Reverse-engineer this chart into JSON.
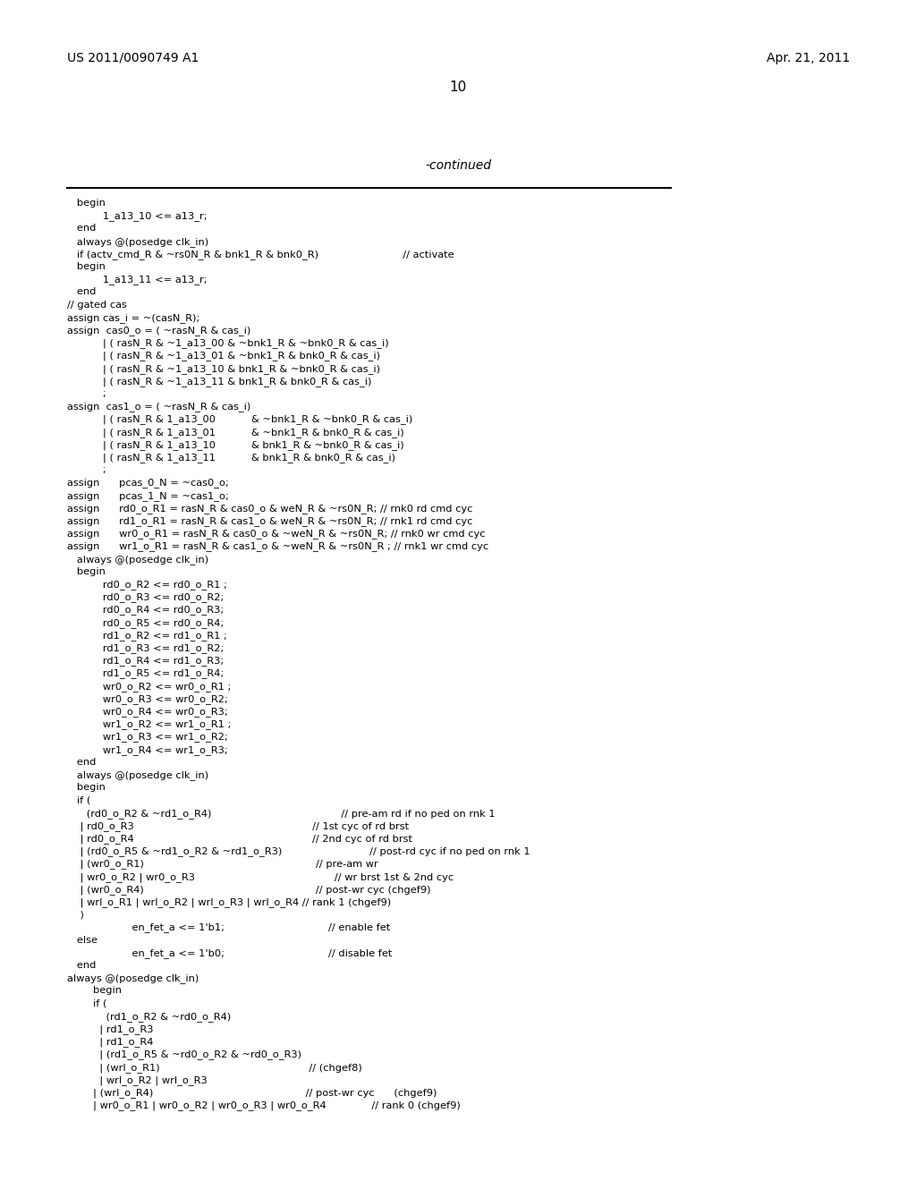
{
  "header_left": "US 2011/0090749 A1",
  "header_right": "Apr. 21, 2011",
  "page_number": "10",
  "continued_text": "-continued",
  "background_color": "#ffffff",
  "text_color": "#000000",
  "code_lines": [
    "   begin",
    "           1_a13_10 <= a13_r;",
    "   end",
    "   always @(posedge clk_in)",
    "   if (actv_cmd_R & ~rs0N_R & bnk1_R & bnk0_R)                          // activate",
    "   begin",
    "           1_a13_11 <= a13_r;",
    "   end",
    "// gated cas",
    "assign cas_i = ~(casN_R);",
    "assign  cas0_o = ( ~rasN_R & cas_i)",
    "           | ( rasN_R & ~1_a13_00 & ~bnk1_R & ~bnk0_R & cas_i)",
    "           | ( rasN_R & ~1_a13_01 & ~bnk1_R & bnk0_R & cas_i)",
    "           | ( rasN_R & ~1_a13_10 & bnk1_R & ~bnk0_R & cas_i)",
    "           | ( rasN_R & ~1_a13_11 & bnk1_R & bnk0_R & cas_i)",
    "           ;",
    "assign  cas1_o = ( ~rasN_R & cas_i)",
    "           | ( rasN_R & 1_a13_00           & ~bnk1_R & ~bnk0_R & cas_i)",
    "           | ( rasN_R & 1_a13_01           & ~bnk1_R & bnk0_R & cas_i)",
    "           | ( rasN_R & 1_a13_10           & bnk1_R & ~bnk0_R & cas_i)",
    "           | ( rasN_R & 1_a13_11           & bnk1_R & bnk0_R & cas_i)",
    "           ;",
    "assign      pcas_0_N = ~cas0_o;",
    "assign      pcas_1_N = ~cas1_o;",
    "assign      rd0_o_R1 = rasN_R & cas0_o & weN_R & ~rs0N_R; // rnk0 rd cmd cyc",
    "assign      rd1_o_R1 = rasN_R & cas1_o & weN_R & ~rs0N_R; // rnk1 rd cmd cyc",
    "assign      wr0_o_R1 = rasN_R & cas0_o & ~weN_R & ~rs0N_R; // rnk0 wr cmd cyc",
    "assign      wr1_o_R1 = rasN_R & cas1_o & ~weN_R & ~rs0N_R ; // rnk1 wr cmd cyc",
    "   always @(posedge clk_in)",
    "   begin",
    "           rd0_o_R2 <= rd0_o_R1 ;",
    "           rd0_o_R3 <= rd0_o_R2;",
    "           rd0_o_R4 <= rd0_o_R3;",
    "           rd0_o_R5 <= rd0_o_R4;",
    "           rd1_o_R2 <= rd1_o_R1 ;",
    "           rd1_o_R3 <= rd1_o_R2;",
    "           rd1_o_R4 <= rd1_o_R3;",
    "           rd1_o_R5 <= rd1_o_R4;",
    "           wr0_o_R2 <= wr0_o_R1 ;",
    "           wr0_o_R3 <= wr0_o_R2;",
    "           wr0_o_R4 <= wr0_o_R3;",
    "           wr1_o_R2 <= wr1_o_R1 ;",
    "           wr1_o_R3 <= wr1_o_R2;",
    "           wr1_o_R4 <= wr1_o_R3;",
    "   end",
    "   always @(posedge clk_in)",
    "   begin",
    "   if (",
    "      (rd0_o_R2 & ~rd1_o_R4)                                        // pre-am rd if no ped on rnk 1",
    "    | rd0_o_R3                                                       // 1st cyc of rd brst",
    "    | rd0_o_R4                                                       // 2nd cyc of rd brst",
    "    | (rd0_o_R5 & ~rd1_o_R2 & ~rd1_o_R3)                           // post-rd cyc if no ped on rnk 1",
    "    | (wr0_o_R1)                                                     // pre-am wr",
    "    | wr0_o_R2 | wr0_o_R3                                           // wr brst 1st & 2nd cyc",
    "    | (wr0_o_R4)                                                     // post-wr cyc (chgef9)",
    "    | wrl_o_R1 | wrl_o_R2 | wrl_o_R3 | wrl_o_R4 // rank 1 (chgef9)",
    "    )",
    "                    en_fet_a <= 1'b1;                                // enable fet",
    "   else",
    "                    en_fet_a <= 1'b0;                                // disable fet",
    "   end",
    "always @(posedge clk_in)",
    "        begin",
    "        if (",
    "            (rd1_o_R2 & ~rd0_o_R4)",
    "          | rd1_o_R3",
    "          | rd1_o_R4",
    "          | (rd1_o_R5 & ~rd0_o_R2 & ~rd0_o_R3)",
    "          | (wrl_o_R1)                                              // (chgef8)",
    "          | wrl_o_R2 | wrl_o_R3",
    "        | (wrl_o_R4)                                               // post-wr cyc      (chgef9)",
    "        | wr0_o_R1 | wr0_o_R2 | wr0_o_R3 | wr0_o_R4              // rank 0 (chgef9)"
  ]
}
